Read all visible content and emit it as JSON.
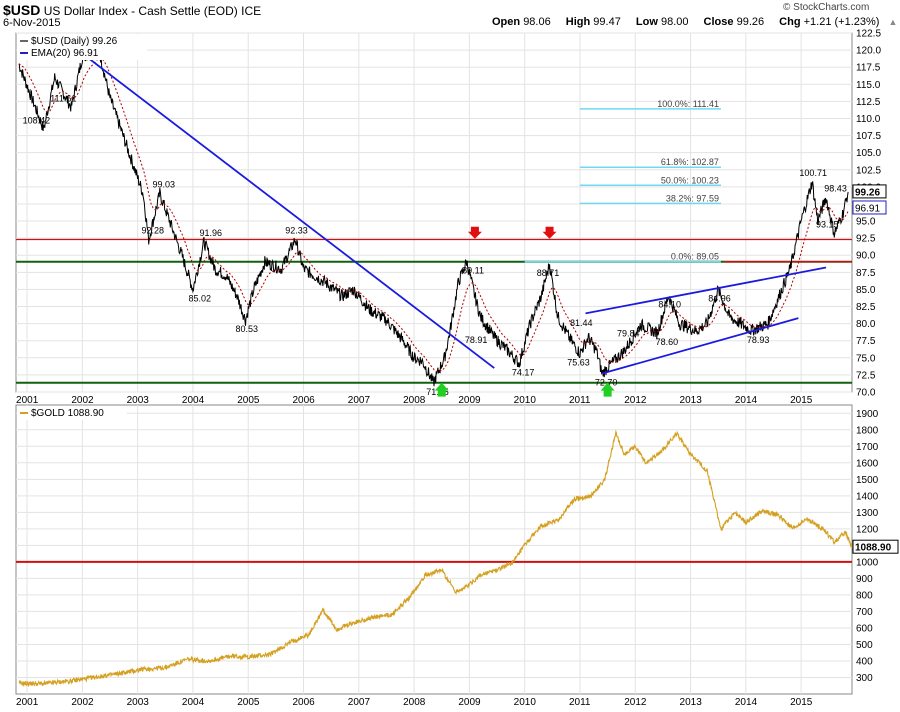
{
  "header": {
    "symbol": "$USD",
    "name": "US Dollar Index - Cash Settle (EOD)",
    "exchange": "ICE",
    "date": "6-Nov-2015",
    "open_label": "Open",
    "open": "98.06",
    "high_label": "High",
    "high": "99.47",
    "low_label": "Low",
    "low": "98.00",
    "close_label": "Close",
    "close": "99.26",
    "chg_label": "Chg",
    "chg": "+1.21 (+1.23%)",
    "credit": "© StockCharts.com",
    "up_arrow": "▲"
  },
  "colors": {
    "usd_line": "#000000",
    "ema": "#b00000",
    "gold": "#d4a020",
    "trend": "#1a1ae0",
    "hline_red": "#d01010",
    "hline_green": "#106010",
    "fib": "#70d8f0",
    "arrow_red": "#e01010",
    "arrow_green": "#20d020"
  },
  "chart_data": [
    {
      "type": "line",
      "title": "$USD (Daily) 99.26",
      "series": [
        {
          "name": "$USD (Daily) 99.26",
          "x": [
            2000.85,
            2001.3,
            2001.5,
            2001.8,
            2002.0,
            2002.3,
            2002.5,
            2002.8,
            2003.1,
            2003.2,
            2003.4,
            2003.8,
            2004.0,
            2004.2,
            2004.4,
            2004.6,
            2004.8,
            2004.95,
            2005.1,
            2005.3,
            2005.6,
            2005.85,
            2006.0,
            2006.2,
            2006.4,
            2006.7,
            2006.9,
            2007.2,
            2007.5,
            2007.8,
            2008.0,
            2008.15,
            2008.35,
            2008.55,
            2008.65,
            2008.8,
            2008.95,
            2009.1,
            2009.2,
            2009.45,
            2009.7,
            2009.9,
            2010.1,
            2010.3,
            2010.45,
            2010.6,
            2010.8,
            2011.0,
            2011.15,
            2011.3,
            2011.4,
            2011.55,
            2011.8,
            2012.1,
            2012.4,
            2012.6,
            2012.8,
            2013.1,
            2013.3,
            2013.5,
            2013.7,
            2013.9,
            2014.1,
            2014.4,
            2014.6,
            2014.8,
            2015.0,
            2015.2,
            2015.3,
            2015.45,
            2015.6,
            2015.75,
            2015.85
          ],
          "values": [
            118,
            108.42,
            116,
            111.61,
            119,
            120,
            113,
            106,
            99,
            92.28,
            99.03,
            90,
            85.02,
            91.96,
            88,
            87,
            84,
            80.53,
            85,
            89,
            88,
            92.33,
            88,
            87,
            86,
            84,
            85,
            82,
            80.5,
            77.5,
            75,
            74.5,
            71.35,
            75,
            78.91,
            86,
            89.11,
            84,
            81,
            78,
            76,
            74.17,
            80,
            84,
            88.71,
            81,
            78,
            75.63,
            78,
            76,
            72.7,
            74,
            76,
            79.84,
            78.6,
            84.1,
            80,
            78.93,
            80,
            84.96,
            81,
            80,
            79,
            80,
            84,
            88,
            95,
            100.71,
            95,
            98.43,
            93.15,
            96,
            99.26
          ]
        },
        {
          "name": "EMA(20) 96.91"
        }
      ],
      "ylim": [
        70,
        122.5
      ],
      "xlim": [
        2000.8,
        2015.92
      ],
      "x_ticks": [
        "2001",
        "2002",
        "2003",
        "2004",
        "2005",
        "2006",
        "2007",
        "2008",
        "2009",
        "2010",
        "2011",
        "2012",
        "2013",
        "2014",
        "2015"
      ],
      "y_ticks": [
        "70.0",
        "72.5",
        "75.0",
        "77.5",
        "80.0",
        "82.5",
        "85.0",
        "87.5",
        "90.0",
        "92.5",
        "95.0",
        "97.5",
        "100.0",
        "102.5",
        "105.0",
        "107.5",
        "110.0",
        "112.5",
        "115.0",
        "117.5",
        "120.0",
        "122.5"
      ],
      "price_tags": {
        "close": "99.26",
        "ema": "96.91"
      },
      "annotations": [
        {
          "text": "108.42",
          "x": 2001.1,
          "y": 108.42
        },
        {
          "text": "111.61",
          "x": 2001.6,
          "y": 111.61
        },
        {
          "text": "99.03",
          "x": 2003.45,
          "y": 99.03
        },
        {
          "text": "92.28",
          "x": 2003.25,
          "y": 92.28
        },
        {
          "text": "91.96",
          "x": 2004.3,
          "y": 91.96
        },
        {
          "text": "85.02",
          "x": 2004.1,
          "y": 85.02
        },
        {
          "text": "80.53",
          "x": 2004.95,
          "y": 80.53
        },
        {
          "text": "92.33",
          "x": 2005.85,
          "y": 92.33
        },
        {
          "text": "71.35",
          "x": 2008.4,
          "y": 71.35
        },
        {
          "text": "78.91",
          "x": 2009.1,
          "y": 78.91
        },
        {
          "text": "89.11",
          "x": 2009.05,
          "y": 89.11
        },
        {
          "text": "74.17",
          "x": 2009.95,
          "y": 74.17
        },
        {
          "text": "88.71",
          "x": 2010.4,
          "y": 88.71
        },
        {
          "text": "75.63",
          "x": 2010.95,
          "y": 75.63
        },
        {
          "text": "81.44",
          "x": 2011.0,
          "y": 81.44
        },
        {
          "text": "72.70",
          "x": 2011.45,
          "y": 72.7
        },
        {
          "text": "79.84",
          "x": 2011.85,
          "y": 79.84
        },
        {
          "text": "78.60",
          "x": 2012.55,
          "y": 78.6
        },
        {
          "text": "84.10",
          "x": 2012.6,
          "y": 84.1
        },
        {
          "text": "84.96",
          "x": 2013.5,
          "y": 84.96
        },
        {
          "text": "78.93",
          "x": 2014.2,
          "y": 78.93
        },
        {
          "text": "100.71",
          "x": 2015.15,
          "y": 100.71
        },
        {
          "text": "98.43",
          "x": 2015.6,
          "y": 98.43
        },
        {
          "text": "93.15",
          "x": 2015.45,
          "y": 93.15
        }
      ],
      "fib_levels": [
        {
          "text": "100.0%: 111.41",
          "y": 111.41
        },
        {
          "text": "61.8%: 102.87",
          "y": 102.87
        },
        {
          "text": "50.0%: 100.23",
          "y": 100.23
        },
        {
          "text": "38.2%: 97.59",
          "y": 97.59
        },
        {
          "text": "0.0%: 89.05",
          "y": 89.05
        }
      ],
      "horizontal_lines": [
        {
          "y": 92.3,
          "color": "red"
        },
        {
          "y": 89.05,
          "color": "red"
        },
        {
          "y": 89.05,
          "color": "green"
        },
        {
          "y": 71.35,
          "color": "green"
        }
      ],
      "trendlines": [
        {
          "from": [
            2002.0,
            119.5
          ],
          "to": [
            2009.45,
            73.5
          ]
        },
        {
          "from": [
            2011.4,
            72.7
          ],
          "to": [
            2014.95,
            80.8
          ]
        },
        {
          "from": [
            2011.1,
            81.5
          ],
          "to": [
            2015.45,
            88.2
          ]
        }
      ],
      "arrows": [
        {
          "dir": "up",
          "x": 2008.5,
          "color": "green"
        },
        {
          "dir": "down",
          "x": 2009.1,
          "color": "red"
        },
        {
          "dir": "down",
          "x": 2010.45,
          "color": "red"
        },
        {
          "dir": "up",
          "x": 2011.5,
          "color": "green"
        }
      ]
    },
    {
      "type": "line",
      "title": "$GOLD 1088.90",
      "series": [
        {
          "name": "$GOLD 1088.90",
          "x": [
            2000.85,
            2001.3,
            2001.8,
            2002.2,
            2002.6,
            2003.1,
            2003.5,
            2003.9,
            2004.3,
            2004.7,
            2005.0,
            2005.4,
            2005.8,
            2006.1,
            2006.35,
            2006.6,
            2006.9,
            2007.2,
            2007.6,
            2007.9,
            2008.2,
            2008.5,
            2008.75,
            2008.95,
            2009.2,
            2009.5,
            2009.8,
            2010.0,
            2010.3,
            2010.6,
            2010.9,
            2011.2,
            2011.45,
            2011.65,
            2011.8,
            2012.0,
            2012.2,
            2012.5,
            2012.75,
            2013.0,
            2013.3,
            2013.55,
            2013.8,
            2014.0,
            2014.3,
            2014.6,
            2014.85,
            2015.1,
            2015.4,
            2015.6,
            2015.8,
            2015.92
          ],
          "values": [
            265,
            262,
            280,
            300,
            320,
            350,
            360,
            410,
            400,
            430,
            425,
            440,
            520,
            560,
            710,
            590,
            630,
            660,
            680,
            780,
            920,
            950,
            820,
            850,
            920,
            950,
            1000,
            1100,
            1220,
            1250,
            1380,
            1400,
            1500,
            1780,
            1650,
            1700,
            1600,
            1680,
            1780,
            1650,
            1550,
            1200,
            1300,
            1240,
            1310,
            1280,
            1200,
            1260,
            1200,
            1120,
            1180,
            1088.9
          ]
        }
      ],
      "ylim": [
        200,
        1950
      ],
      "xlim": [
        2000.8,
        2015.92
      ],
      "x_ticks": [
        "2001",
        "2002",
        "2003",
        "2004",
        "2005",
        "2006",
        "2007",
        "2008",
        "2009",
        "2010",
        "2011",
        "2012",
        "2013",
        "2014",
        "2015"
      ],
      "y_ticks": [
        "300",
        "400",
        "500",
        "600",
        "700",
        "800",
        "900",
        "1000",
        "1100",
        "1200",
        "1300",
        "1400",
        "1500",
        "1600",
        "1700",
        "1800",
        "1900"
      ],
      "price_tag": "1088.90",
      "horizontal_lines": [
        {
          "y": 1000,
          "color": "red"
        }
      ]
    }
  ]
}
